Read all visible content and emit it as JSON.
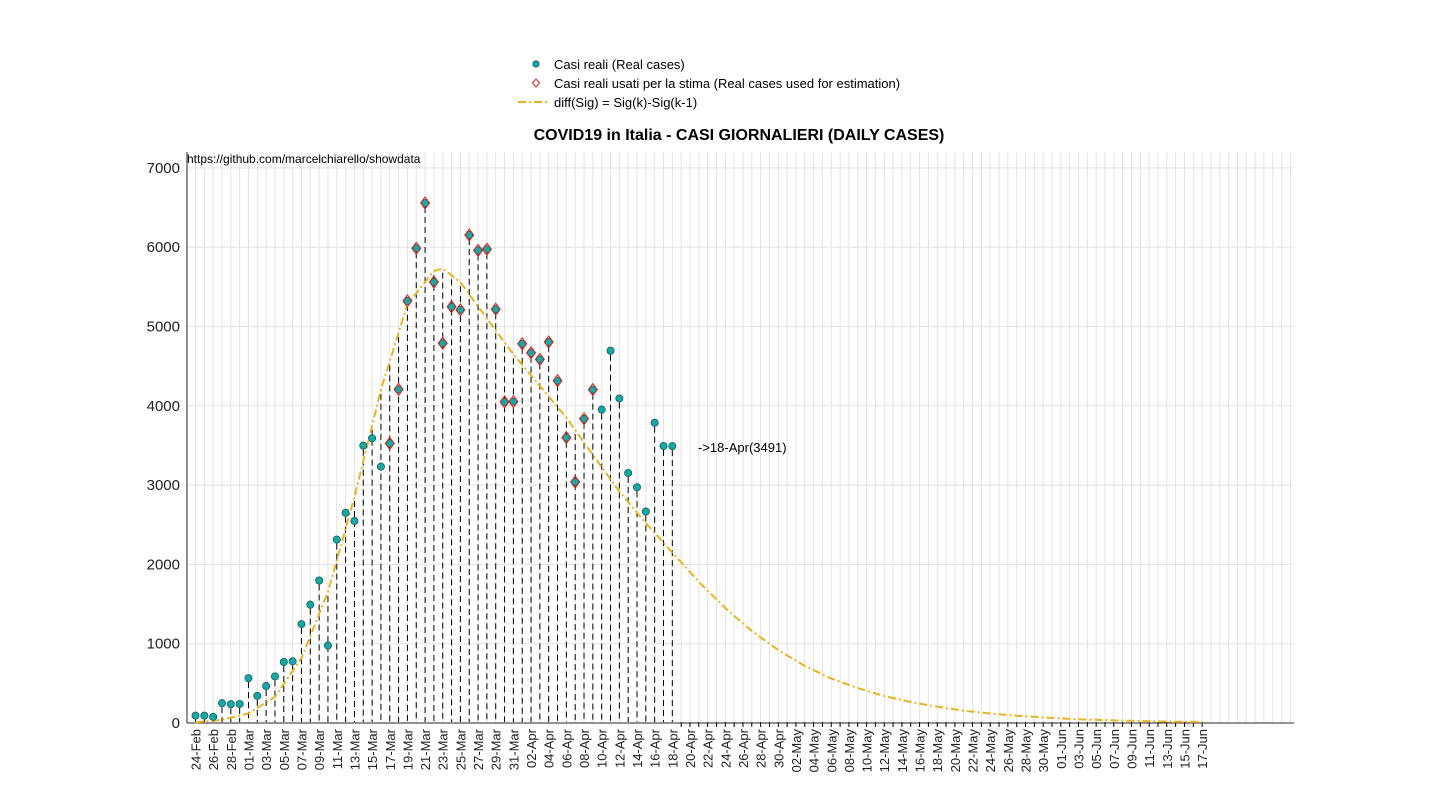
{
  "chart_data": {
    "type": "line",
    "title": "COVID19 in Italia - CASI GIORNALIERI (DAILY CASES)",
    "source_note": "https://github.com/marcelchiarello/showdata",
    "annotation": "->18-Apr(3491)",
    "ylim": [
      0,
      7200
    ],
    "yticks": [
      0,
      1000,
      2000,
      3000,
      4000,
      5000,
      6000,
      7000
    ],
    "grid": true,
    "legend_position": "top-center",
    "x_start": "24-Feb",
    "x_end": "17-Jun",
    "x_tick_labels": [
      "24-Feb",
      "26-Feb",
      "28-Feb",
      "01-Mar",
      "03-Mar",
      "05-Mar",
      "07-Mar",
      "09-Mar",
      "11-Mar",
      "13-Mar",
      "15-Mar",
      "17-Mar",
      "19-Mar",
      "21-Mar",
      "23-Mar",
      "25-Mar",
      "27-Mar",
      "29-Mar",
      "31-Mar",
      "02-Apr",
      "04-Apr",
      "06-Apr",
      "08-Apr",
      "10-Apr",
      "12-Apr",
      "14-Apr",
      "16-Apr",
      "18-Apr",
      "20-Apr",
      "22-Apr",
      "24-Apr",
      "26-Apr",
      "28-Apr",
      "30-Apr",
      "02-May",
      "04-May",
      "06-May",
      "08-May",
      "10-May",
      "12-May",
      "14-May",
      "16-May",
      "18-May",
      "20-May",
      "22-May",
      "24-May",
      "26-May",
      "28-May",
      "30-May",
      "01-Jun",
      "03-Jun",
      "05-Jun",
      "07-Jun",
      "09-Jun",
      "11-Jun",
      "13-Jun",
      "15-Jun",
      "17-Jun"
    ],
    "colors": {
      "real": "#1aa7a3",
      "estimation_marker": "#e8231b",
      "fit": "#e6b422",
      "grid": "#e3e3e3",
      "stem": "#000000"
    },
    "series": [
      {
        "name": "Casi reali (Real cases)",
        "marker": "circle",
        "dates": [
          "24-Feb",
          "25-Feb",
          "26-Feb",
          "27-Feb",
          "28-Feb",
          "29-Feb",
          "01-Mar",
          "02-Mar",
          "03-Mar",
          "04-Mar",
          "05-Mar",
          "06-Mar",
          "07-Mar",
          "08-Mar",
          "09-Mar",
          "10-Mar",
          "11-Mar",
          "12-Mar",
          "13-Mar",
          "14-Mar",
          "15-Mar",
          "16-Mar",
          "17-Mar",
          "18-Mar",
          "19-Mar",
          "20-Mar",
          "21-Mar",
          "22-Mar",
          "23-Mar",
          "24-Mar",
          "25-Mar",
          "26-Mar",
          "27-Mar",
          "28-Mar",
          "29-Mar",
          "30-Mar",
          "31-Mar",
          "01-Apr",
          "02-Apr",
          "03-Apr",
          "04-Apr",
          "05-Apr",
          "06-Apr",
          "07-Apr",
          "08-Apr",
          "09-Apr",
          "10-Apr",
          "11-Apr",
          "12-Apr",
          "13-Apr",
          "14-Apr",
          "15-Apr",
          "16-Apr",
          "17-Apr",
          "18-Apr"
        ],
        "values": [
          93,
          93,
          78,
          250,
          238,
          240,
          566,
          342,
          466,
          587,
          769,
          778,
          1247,
          1492,
          1797,
          977,
          2313,
          2651,
          2547,
          3497,
          3590,
          3233,
          3526,
          4207,
          5322,
          5986,
          6557,
          5560,
          4789,
          5249,
          5210,
          6153,
          5959,
          5974,
          5217,
          4050,
          4053,
          4782,
          4668,
          4585,
          4805,
          4316,
          3599,
          3039,
          3836,
          4204,
          3951,
          4694,
          4092,
          3153,
          2972,
          2667,
          3786,
          3493,
          3491
        ]
      },
      {
        "name": "Casi reali usati per la stima (Real cases used for estimation)",
        "marker": "diamond",
        "dates": [
          "17-Mar",
          "18-Mar",
          "19-Mar",
          "20-Mar",
          "21-Mar",
          "22-Mar",
          "23-Mar",
          "24-Mar",
          "25-Mar",
          "26-Mar",
          "27-Mar",
          "28-Mar",
          "29-Mar",
          "30-Mar",
          "31-Mar",
          "01-Apr",
          "02-Apr",
          "03-Apr",
          "04-Apr",
          "05-Apr",
          "06-Apr",
          "07-Apr",
          "08-Apr",
          "09-Apr"
        ],
        "values": [
          3526,
          4207,
          5322,
          5986,
          6557,
          5560,
          4789,
          5249,
          5210,
          6153,
          5959,
          5974,
          5217,
          4050,
          4053,
          4782,
          4668,
          4585,
          4805,
          4316,
          3599,
          3039,
          3836,
          4204
        ]
      },
      {
        "name": "diff(Sig) = Sig(k)-Sig(k-1)",
        "style": "dash-dot",
        "dates": [
          "24-Feb",
          "27-Feb",
          "01-Mar",
          "04-Mar",
          "07-Mar",
          "10-Mar",
          "13-Mar",
          "16-Mar",
          "19-Mar",
          "22-Mar",
          "23-Mar",
          "25-Mar",
          "28-Mar",
          "31-Mar",
          "03-Apr",
          "06-Apr",
          "09-Apr",
          "12-Apr",
          "15-Apr",
          "18-Apr",
          "21-Apr",
          "24-Apr",
          "27-Apr",
          "30-Apr",
          "03-May",
          "06-May",
          "09-May",
          "12-May",
          "15-May",
          "18-May",
          "21-May",
          "24-May",
          "27-May",
          "30-May",
          "02-Jun",
          "05-Jun",
          "08-Jun",
          "11-Jun",
          "14-Jun",
          "17-Jun"
        ],
        "values": [
          8,
          40,
          120,
          330,
          820,
          1650,
          2850,
          4200,
          5280,
          5700,
          5730,
          5560,
          5100,
          4650,
          4250,
          3850,
          3380,
          2920,
          2520,
          2150,
          1780,
          1450,
          1160,
          920,
          720,
          560,
          440,
          340,
          265,
          205,
          155,
          120,
          92,
          70,
          52,
          40,
          30,
          22,
          17,
          13
        ]
      }
    ]
  }
}
